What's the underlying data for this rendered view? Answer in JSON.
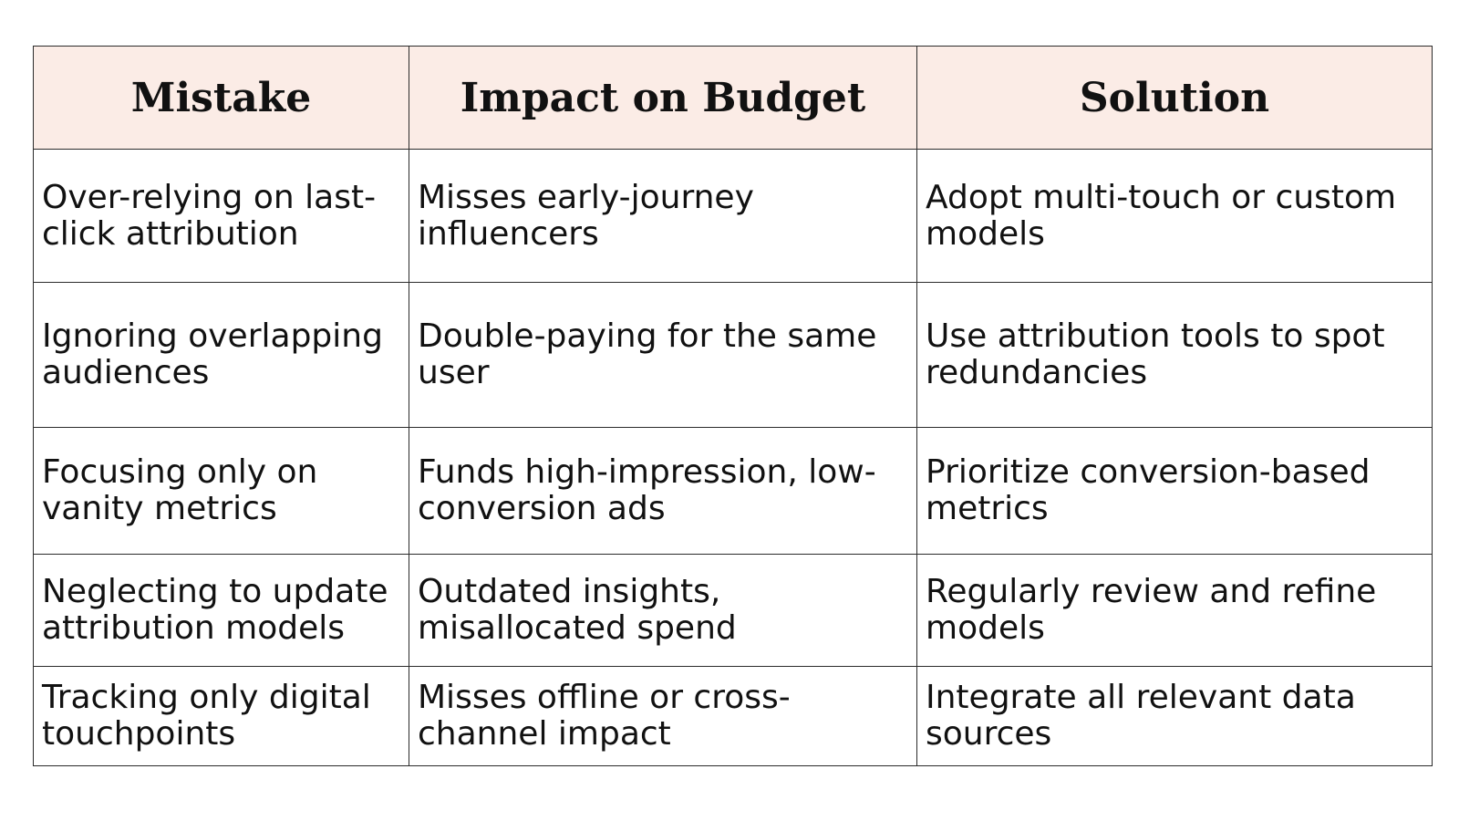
{
  "table": {
    "headers": [
      "Mistake",
      "Impact on Budget",
      "Solution"
    ],
    "rows": [
      [
        "Over-relying on last-click attribution",
        "Misses early-journey influencers",
        "Adopt multi-touch or custom models"
      ],
      [
        "Ignoring overlapping audiences",
        "Double-paying for the same user",
        "Use attribution tools to spot redundancies"
      ],
      [
        "Focusing only on vanity metrics",
        "Funds high-impression, low-conversion ads",
        "Prioritize conversion-based metrics"
      ],
      [
        "Neglecting to update attribution models",
        "Outdated insights, misallocated spend",
        "Regularly review and refine models"
      ],
      [
        "Tracking only digital touchpoints",
        "Misses offline or cross-channel impact",
        "Integrate all relevant data sources"
      ]
    ]
  }
}
